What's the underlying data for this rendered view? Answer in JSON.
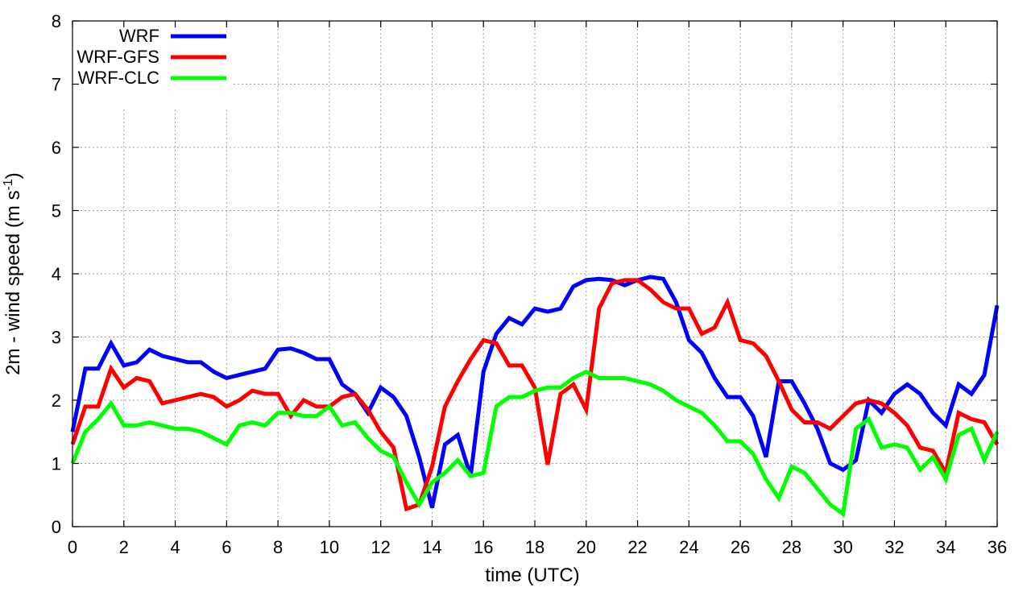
{
  "chart_data": {
    "type": "line",
    "title": "",
    "xlabel": "time (UTC)",
    "ylabel": {
      "main": "2m - wind speed  (m s",
      "sup": "-1",
      "end": ")"
    },
    "xlim": [
      0,
      36
    ],
    "ylim": [
      0,
      8
    ],
    "xticks": [
      "0",
      "2",
      "4",
      "6",
      "8",
      "10",
      "12",
      "14",
      "16",
      "18",
      "20",
      "22",
      "24",
      "26",
      "28",
      "30",
      "32",
      "34",
      "36"
    ],
    "yticks": [
      "0",
      "1",
      "2",
      "3",
      "4",
      "5",
      "6",
      "7",
      "8"
    ],
    "grid": true,
    "legend_position": "top-left",
    "x": [
      0,
      0.5,
      1,
      1.5,
      2,
      2.5,
      3,
      3.5,
      4,
      4.5,
      5,
      5.5,
      6,
      6.5,
      7,
      7.5,
      8,
      8.5,
      9,
      9.5,
      10,
      10.5,
      11,
      11.5,
      12,
      12.5,
      13,
      13.5,
      14,
      14.5,
      15,
      15.5,
      16,
      16.5,
      17,
      17.5,
      18,
      18.5,
      19,
      19.5,
      20,
      20.5,
      21,
      21.5,
      22,
      22.5,
      23,
      23.5,
      24,
      24.5,
      25,
      25.5,
      26,
      26.5,
      27,
      27.5,
      28,
      28.5,
      29,
      29.5,
      30,
      30.5,
      31,
      31.5,
      32,
      32.5,
      33,
      33.5,
      34,
      34.5,
      35,
      35.5,
      36
    ],
    "series": [
      {
        "name": "WRF",
        "color": "#0000ff",
        "values": [
          1.5,
          2.5,
          2.5,
          2.9,
          2.55,
          2.6,
          2.8,
          2.7,
          2.65,
          2.6,
          2.6,
          2.45,
          2.35,
          2.4,
          2.45,
          2.5,
          2.8,
          2.82,
          2.75,
          2.65,
          2.65,
          2.25,
          2.1,
          1.8,
          2.2,
          2.05,
          1.75,
          1.1,
          0.3,
          1.3,
          1.45,
          0.8,
          2.45,
          3.05,
          3.3,
          3.2,
          3.45,
          3.4,
          3.45,
          3.8,
          3.9,
          3.92,
          3.9,
          3.82,
          3.9,
          3.95,
          3.92,
          3.55,
          2.95,
          2.75,
          2.35,
          2.05,
          2.05,
          1.75,
          1.1,
          2.3,
          2.3,
          1.95,
          1.55,
          1.0,
          0.9,
          1.05,
          2.0,
          1.8,
          2.1,
          2.25,
          2.1,
          1.8,
          1.6,
          2.25,
          2.1,
          2.4,
          3.5
        ]
      },
      {
        "name": "WRF-GFS",
        "color": "#ff0000",
        "values": [
          1.3,
          1.9,
          1.9,
          2.5,
          2.2,
          2.35,
          2.3,
          1.95,
          2.0,
          2.05,
          2.1,
          2.05,
          1.9,
          2.0,
          2.15,
          2.1,
          2.1,
          1.75,
          2.0,
          1.9,
          1.9,
          2.05,
          2.1,
          1.85,
          1.5,
          1.25,
          0.28,
          0.35,
          0.95,
          1.9,
          2.3,
          2.65,
          2.95,
          2.9,
          2.55,
          2.55,
          2.2,
          0.98,
          2.1,
          2.25,
          1.85,
          3.45,
          3.85,
          3.9,
          3.9,
          3.75,
          3.55,
          3.45,
          3.45,
          3.05,
          3.15,
          3.55,
          2.95,
          2.9,
          2.7,
          2.3,
          1.85,
          1.65,
          1.65,
          1.55,
          1.75,
          1.95,
          2.0,
          1.95,
          1.8,
          1.6,
          1.25,
          1.2,
          0.85,
          1.8,
          1.7,
          1.65,
          1.3
        ]
      },
      {
        "name": "WRF-CLC",
        "color": "#00ff00",
        "values": [
          1.0,
          1.5,
          1.7,
          1.95,
          1.6,
          1.6,
          1.65,
          1.6,
          1.55,
          1.55,
          1.5,
          1.4,
          1.3,
          1.6,
          1.65,
          1.6,
          1.8,
          1.8,
          1.75,
          1.75,
          1.9,
          1.6,
          1.65,
          1.4,
          1.2,
          1.1,
          0.7,
          0.35,
          0.7,
          0.85,
          1.05,
          0.8,
          0.85,
          1.9,
          2.05,
          2.05,
          2.15,
          2.2,
          2.2,
          2.35,
          2.45,
          2.35,
          2.35,
          2.35,
          2.3,
          2.25,
          2.15,
          2.0,
          1.9,
          1.8,
          1.6,
          1.35,
          1.35,
          1.15,
          0.75,
          0.45,
          0.95,
          0.85,
          0.6,
          0.35,
          0.2,
          1.55,
          1.7,
          1.25,
          1.3,
          1.25,
          0.9,
          1.1,
          0.75,
          1.45,
          1.55,
          1.05,
          1.5
        ]
      }
    ]
  }
}
